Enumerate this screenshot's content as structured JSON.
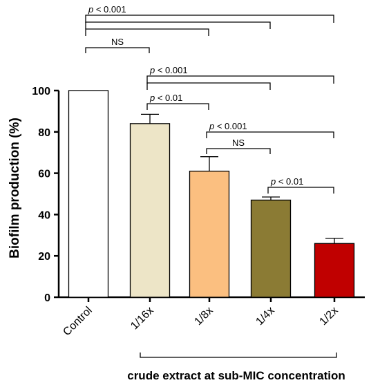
{
  "chart_data": {
    "type": "bar",
    "categories": [
      "Control",
      "1/16x",
      "1/8x",
      "1/4x",
      "1/2x"
    ],
    "values": [
      100,
      84,
      61,
      47,
      26
    ],
    "errors": [
      0,
      4.5,
      7,
      1.5,
      2.5
    ],
    "colors": [
      "#ffffff",
      "#ede5c7",
      "#fbbf80",
      "#8b7b34",
      "#c00000"
    ],
    "ylabel": "Biofilm production (%)",
    "ylim": [
      0,
      100
    ],
    "yticks": [
      0,
      20,
      40,
      60,
      80,
      100
    ],
    "group_label": "crude extract at sub-MIC concentration",
    "group_span": [
      "1/16x",
      "1/2x"
    ],
    "comparisons": [
      {
        "from": "Control",
        "to": "1/2x",
        "label": "p < 0.001"
      },
      {
        "from": "Control",
        "to": "1/4x",
        "label": ""
      },
      {
        "from": "Control",
        "to": "1/8x",
        "label": ""
      },
      {
        "from": "Control",
        "to": "1/16x",
        "label": "NS"
      },
      {
        "from": "1/16x",
        "to": "1/2x",
        "label": "p < 0.001"
      },
      {
        "from": "1/16x",
        "to": "1/4x",
        "label": ""
      },
      {
        "from": "1/16x",
        "to": "1/8x",
        "label": "p < 0.01"
      },
      {
        "from": "1/8x",
        "to": "1/2x",
        "label": "p < 0.001"
      },
      {
        "from": "1/8x",
        "to": "1/4x",
        "label": "NS"
      },
      {
        "from": "1/4x",
        "to": "1/2x",
        "label": "p < 0.01"
      }
    ]
  }
}
